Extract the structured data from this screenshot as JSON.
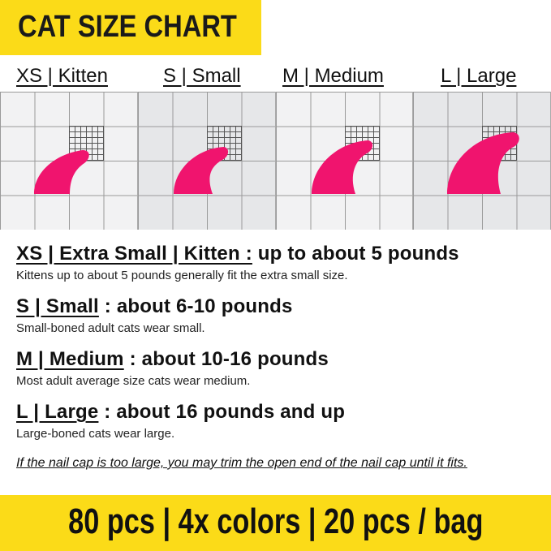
{
  "header": {
    "title": "CAT SIZE CHART",
    "color": "#fbdb18"
  },
  "size_labels": [
    "XS | Kitten",
    "S | Small",
    "M | Medium",
    "L | Large"
  ],
  "cap_color": "#f0146e",
  "sizes": [
    {
      "heading": "XS | Extra Small | Kitten :",
      "value": " up to about 5 pounds",
      "desc": "Kittens up to about 5 pounds generally fit the extra small size."
    },
    {
      "heading": "S | Small",
      "value": " : about 6-10 pounds",
      "desc": "Small-boned adult cats wear small."
    },
    {
      "heading": "M | Medium",
      "value": " : about 10-16 pounds",
      "desc": "Most adult average size cats wear medium."
    },
    {
      "heading": "L | Large",
      "value": " : about 16 pounds and up",
      "desc": "Large-boned cats wear large."
    }
  ],
  "note": "If the nail cap is too large, you may trim the open end of the nail cap until it fits.",
  "footer": "80 pcs | 4x colors | 20 pcs / bag"
}
